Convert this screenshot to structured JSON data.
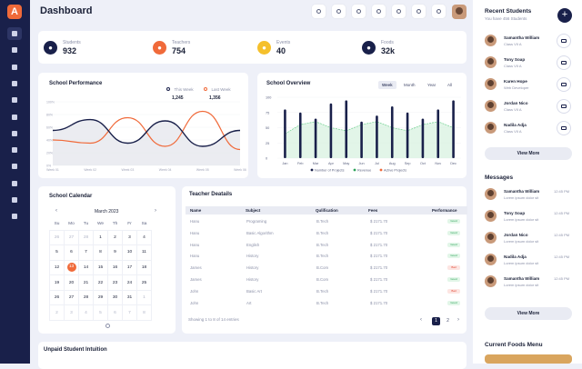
{
  "page": {
    "title": "Dashboard"
  },
  "stats": [
    {
      "label": "Students",
      "value": "932",
      "color": "#19204a",
      "icon": "students-icon"
    },
    {
      "label": "Teachers",
      "value": "754",
      "color": "#f06a3a",
      "icon": "teachers-icon"
    },
    {
      "label": "Events",
      "value": "40",
      "color": "#f5c02c",
      "icon": "events-icon"
    },
    {
      "label": "Foods",
      "value": "32k",
      "color": "#19204a",
      "icon": "foods-icon"
    }
  ],
  "performance": {
    "title": "School Performance",
    "legend": [
      {
        "label": "This Week",
        "value": "1,245",
        "color": "#19204a"
      },
      {
        "label": "Last Week",
        "value": "1,356",
        "color": "#f06a3a"
      }
    ],
    "y_ticks": [
      "100%",
      "80%",
      "60%",
      "40%",
      "20%",
      "0%"
    ],
    "x_ticks": [
      "Week 01",
      "Week 02",
      "Week 03",
      "Week 04",
      "Week 05",
      "Week 06"
    ]
  },
  "overview": {
    "title": "School Overview",
    "tabs": [
      "Week",
      "Month",
      "Year",
      "All"
    ],
    "active_tab": "Week",
    "y_ticks": [
      "100",
      "75",
      "50",
      "25",
      "0"
    ],
    "x_ticks": [
      "Jan",
      "Feb",
      "Mar",
      "Apr",
      "May",
      "Jun",
      "Jul",
      "Aug",
      "Sep",
      "Oct",
      "Nov",
      "Dec"
    ],
    "legend": [
      "Number of Projects",
      "Revenue",
      "Active Projects"
    ]
  },
  "calendar": {
    "title": "School Calendar",
    "month": "March 2023",
    "prev": "‹",
    "next": "›",
    "weekdays": [
      "Su",
      "Mo",
      "Tu",
      "We",
      "Th",
      "Fr",
      "Sa"
    ],
    "weeks": [
      [
        "26",
        "27",
        "28",
        "1",
        "2",
        "3",
        "4"
      ],
      [
        "5",
        "6",
        "7",
        "8",
        "9",
        "10",
        "11"
      ],
      [
        "12",
        "13",
        "14",
        "15",
        "16",
        "17",
        "18"
      ],
      [
        "19",
        "20",
        "21",
        "22",
        "23",
        "24",
        "25"
      ],
      [
        "26",
        "27",
        "28",
        "29",
        "30",
        "31",
        "1"
      ],
      [
        "2",
        "3",
        "4",
        "5",
        "6",
        "7",
        "8"
      ]
    ],
    "today": "13"
  },
  "teachers": {
    "title": "Teacher Deatails",
    "columns": [
      "Name",
      "Subject",
      "Qulification",
      "Fees",
      "Performance"
    ],
    "rows": [
      {
        "name": "Hanu",
        "subject": "Programing",
        "qual": "B.Tech",
        "fee": "$ 2171.70",
        "perf": "Good",
        "good": true
      },
      {
        "name": "Hanu",
        "subject": "Basic Algorithm",
        "qual": "B.Tech",
        "fee": "$ 2171.70",
        "perf": "Good",
        "good": true
      },
      {
        "name": "Hanu",
        "subject": "English",
        "qual": "B.Tech",
        "fee": "$ 2171.70",
        "perf": "Good",
        "good": true
      },
      {
        "name": "Hanu",
        "subject": "History",
        "qual": "B.Tech",
        "fee": "$ 2171.70",
        "perf": "Good",
        "good": true
      },
      {
        "name": "James",
        "subject": "History",
        "qual": "B.Com",
        "fee": "$ 2171.70",
        "perf": "Bad",
        "good": false
      },
      {
        "name": "James",
        "subject": "History",
        "qual": "B.Com",
        "fee": "$ 2171.70",
        "perf": "Good",
        "good": true
      },
      {
        "name": "John",
        "subject": "Basic Art",
        "qual": "B.Tech",
        "fee": "$ 2171.70",
        "perf": "Bad",
        "good": false
      },
      {
        "name": "John",
        "subject": "Art",
        "qual": "B.Tech",
        "fee": "$ 2171.70",
        "perf": "Good",
        "good": true
      }
    ],
    "footer": "Showing 1 to 8 of 14 entries",
    "pages": [
      "1",
      "2"
    ]
  },
  "unpaid": {
    "title": "Unpaid Student Intuition"
  },
  "recent": {
    "title": "Recent Students",
    "subtitle": "You have 456 Students",
    "view_more": "View More",
    "items": [
      {
        "name": "Samantha William",
        "cls": "Class VII A"
      },
      {
        "name": "Tony Soap",
        "cls": "Class VII A"
      },
      {
        "name": "Karen Hope",
        "cls": "Web Developer"
      },
      {
        "name": "Jordan Nico",
        "cls": "Class VII A"
      },
      {
        "name": "Nadila Adja",
        "cls": "Class VII A"
      }
    ]
  },
  "messages": {
    "title": "Messages",
    "view_more": "View More",
    "items": [
      {
        "name": "Samantha William",
        "text": "Lorem ipsum dolor sit",
        "time": "12:45 PM"
      },
      {
        "name": "Tony Soap",
        "text": "Lorem ipsum dolor sit",
        "time": "12:45 PM"
      },
      {
        "name": "Jordan Nico",
        "text": "Lorem ipsum dolor sit",
        "time": "12:45 PM"
      },
      {
        "name": "Nadila Adja",
        "text": "Lorem ipsum dolor sit",
        "time": "12:45 PM"
      },
      {
        "name": "Samantha William",
        "text": "Lorem ipsum dolor sit",
        "time": "12:45 PM"
      }
    ]
  },
  "foods": {
    "title": "Current Foods Menu"
  },
  "chart_data": [
    {
      "type": "line",
      "title": "School Performance",
      "x": [
        "Week 01",
        "Week 02",
        "Week 03",
        "Week 04",
        "Week 05",
        "Week 06"
      ],
      "ylim": [
        0,
        100
      ],
      "series": [
        {
          "name": "This Week",
          "values": [
            55,
            72,
            35,
            70,
            30,
            55
          ]
        },
        {
          "name": "Last Week",
          "values": [
            40,
            35,
            75,
            30,
            85,
            25
          ]
        }
      ]
    },
    {
      "type": "bar",
      "title": "School Overview",
      "categories": [
        "Jan",
        "Feb",
        "Mar",
        "Apr",
        "May",
        "Jun",
        "Jul",
        "Aug",
        "Sep",
        "Oct",
        "Nov",
        "Dec"
      ],
      "ylim": [
        0,
        100
      ],
      "series": [
        {
          "name": "Number of Projects",
          "values": [
            80,
            75,
            65,
            90,
            95,
            60,
            70,
            85,
            75,
            65,
            80,
            95
          ]
        },
        {
          "name": "Revenue",
          "values": [
            40,
            55,
            60,
            50,
            45,
            55,
            60,
            50,
            45,
            55,
            60,
            50
          ]
        },
        {
          "name": "Active Projects",
          "values": [
            20,
            30,
            25,
            35,
            30,
            25,
            35,
            30,
            25,
            35,
            30,
            25
          ]
        }
      ]
    }
  ]
}
